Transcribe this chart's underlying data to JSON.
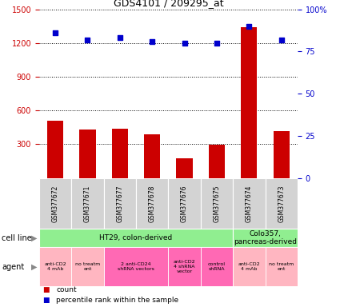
{
  "title": "GDS4101 / 209295_at",
  "samples": [
    "GSM377672",
    "GSM377671",
    "GSM377677",
    "GSM377678",
    "GSM377676",
    "GSM377675",
    "GSM377674",
    "GSM377673"
  ],
  "counts": [
    510,
    430,
    440,
    390,
    175,
    295,
    1340,
    420
  ],
  "percentiles": [
    86,
    82,
    83,
    81,
    80,
    80,
    90,
    82
  ],
  "ylim_left": [
    0,
    1500
  ],
  "ylim_right": [
    0,
    100
  ],
  "yticks_left": [
    300,
    600,
    900,
    1200,
    1500
  ],
  "yticks_right": [
    0,
    25,
    50,
    75,
    100
  ],
  "bar_color": "#CC0000",
  "scatter_color": "#0000CC",
  "tick_color_left": "#CC0000",
  "tick_color_right": "#0000CC",
  "sample_box_color": "#d3d3d3",
  "cell_line_data": [
    {
      "label": "HT29, colon-derived",
      "start": 0,
      "end": 6,
      "color": "#90EE90"
    },
    {
      "label": "Colo357,\npancreas-derived",
      "start": 6,
      "end": 8,
      "color": "#90EE90"
    }
  ],
  "agent_data": [
    {
      "label": "anti-CD2\n4 mAb",
      "start": 0,
      "end": 1,
      "color": "#FFB6C1"
    },
    {
      "label": "no treatm\nent",
      "start": 1,
      "end": 2,
      "color": "#FFB6C1"
    },
    {
      "label": "2 anti-CD24\nshRNA vectors",
      "start": 2,
      "end": 4,
      "color": "#FF69B4"
    },
    {
      "label": "anti-CD2\n4 shRNA\nvector",
      "start": 4,
      "end": 5,
      "color": "#FF69B4"
    },
    {
      "label": "control\nshRNA",
      "start": 5,
      "end": 6,
      "color": "#FF69B4"
    },
    {
      "label": "anti-CD2\n4 mAb",
      "start": 6,
      "end": 7,
      "color": "#FFB6C1"
    },
    {
      "label": "no treatm\nent",
      "start": 7,
      "end": 8,
      "color": "#FFB6C1"
    }
  ],
  "legend_items": [
    {
      "color": "#CC0000",
      "label": "count"
    },
    {
      "color": "#0000CC",
      "label": "percentile rank within the sample"
    }
  ]
}
